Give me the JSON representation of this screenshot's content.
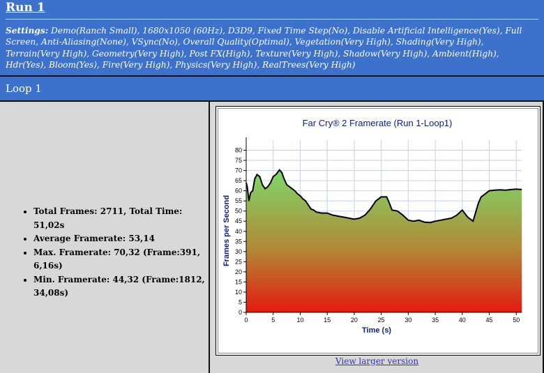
{
  "run": {
    "title": "Run 1",
    "settings_label": "Settings:",
    "settings_text": " Demo(Ranch Small), 1680x1050 (60Hz), D3D9, Fixed Time Step(No), Disable Artificial Intelligence(Yes), Full Screen, Anti-Aliasing(None), VSync(No), Overall Quality(Optimal), Vegetation(Very High), Shading(Very High), Terrain(Very High), Geometry(Very High), Post FX(High), Texture(Very High), Shadow(Very High), Ambient(High), Hdr(Yes), Bloom(Yes), Fire(Very High), Physics(Very High), RealTrees(Very High)"
  },
  "loop": {
    "label": "Loop 1"
  },
  "stats": [
    "Total Frames: 2711, Total Time: 51,02s",
    "Average Framerate: 53,14",
    "Max. Framerate: 70,32 (Frame:391, 6,16s)",
    "Min. Framerate: 44,32 (Frame:1812, 34,08s)"
  ],
  "link": {
    "label": "View larger version"
  },
  "colors": {
    "header_bg": "#3d72cc",
    "pane_bg": "#d8d8d8",
    "fill_top": "#7ed86a",
    "fill_bottom": "#e41a10",
    "title": "#0b1f7a"
  },
  "chart_data": {
    "type": "area",
    "title": "Far Cry® 2 Framerate (Run 1-Loop1)",
    "xlabel": "Time (s)",
    "ylabel": "Frames per Second",
    "xlim": [
      0,
      51
    ],
    "ylim": [
      0,
      85
    ],
    "xticks": [
      0,
      5,
      10,
      15,
      20,
      25,
      30,
      35,
      40,
      45,
      50
    ],
    "yticks": [
      0,
      5,
      10,
      15,
      20,
      25,
      30,
      35,
      40,
      45,
      50,
      55,
      60,
      65,
      70,
      75,
      80
    ],
    "grid": true,
    "series": [
      {
        "x": [
          0,
          0.2,
          0.5,
          0.8,
          1.2,
          1.6,
          2.0,
          2.5,
          3.0,
          3.5,
          4.0,
          4.5,
          5.0,
          5.5,
          6.16,
          6.6,
          7.0,
          7.5,
          8.0,
          8.5,
          9.0,
          9.5,
          10.0,
          10.5,
          11.0,
          11.5,
          12.0,
          12.5,
          13.0,
          14.0,
          15.0,
          16.0,
          17.0,
          18.0,
          19.0,
          20.0,
          21.0,
          22.0,
          23.0,
          24.0,
          25.0,
          26.0,
          26.5,
          27.0,
          28.0,
          29.0,
          30.0,
          31.0,
          32.0,
          33.0,
          34.08,
          35.0,
          36.0,
          37.0,
          38.0,
          39.0,
          40.0,
          41.0,
          42.0,
          43.0,
          43.5,
          44.0,
          45.0,
          46.0,
          47.0,
          48.0,
          49.0,
          50.0,
          51.02
        ],
        "y": [
          64,
          62,
          55,
          59,
          60,
          66,
          68,
          67,
          63,
          61,
          62,
          64,
          67,
          68,
          70.3,
          69,
          66,
          63,
          62,
          61,
          60,
          58.5,
          57.5,
          56,
          55,
          53,
          51,
          50.5,
          49.5,
          49,
          49,
          48,
          47.5,
          47,
          46.5,
          46,
          46.5,
          48,
          51,
          55,
          57,
          57,
          54,
          50.5,
          50,
          48,
          45.5,
          45,
          45.5,
          44.5,
          44.3,
          45,
          45.5,
          46,
          46.5,
          48,
          50.5,
          47,
          45,
          54,
          57,
          58,
          60,
          60.3,
          60.5,
          60.3,
          60.6,
          60.8,
          60.6
        ]
      }
    ]
  }
}
